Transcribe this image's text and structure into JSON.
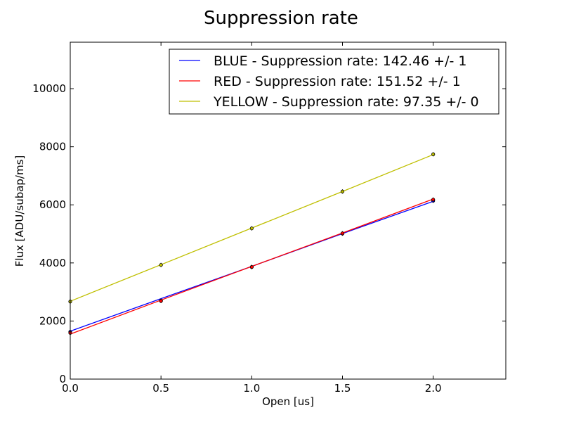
{
  "chart_data": {
    "type": "line",
    "title": "Suppression rate",
    "xlabel": "Open [us]",
    "ylabel": "Flux [ADU/subap/ms]",
    "xlim": [
      0.0,
      2.4
    ],
    "ylim": [
      0,
      11600
    ],
    "xticks": [
      0.0,
      0.5,
      1.0,
      1.5,
      2.0
    ],
    "xtick_labels": [
      "0.0",
      "0.5",
      "1.0",
      "1.5",
      "2.0"
    ],
    "yticks": [
      0,
      2000,
      4000,
      6000,
      8000,
      10000
    ],
    "ytick_labels": [
      "0",
      "2000",
      "4000",
      "6000",
      "8000",
      "10000"
    ],
    "grid": false,
    "legend_position": "top-right",
    "series": [
      {
        "name": "BLUE - Suppression rate: 142.46 +/- 1",
        "color": "#0000ff",
        "x": [
          0.0,
          0.5,
          1.0,
          1.5,
          2.0
        ],
        "points": [
          1630,
          2700,
          3860,
          5010,
          6140
        ],
        "fit": [
          1650,
          2770,
          3880,
          5010,
          6120
        ]
      },
      {
        "name": "RED - Suppression rate: 151.52 +/- 1",
        "color": "#ff0000",
        "x": [
          0.0,
          0.5,
          1.0,
          1.5,
          2.0
        ],
        "points": [
          1590,
          2690,
          3860,
          5020,
          6180
        ],
        "fit": [
          1550,
          2720,
          3880,
          5030,
          6200
        ]
      },
      {
        "name": "YELLOW - Suppression rate: 97.35 +/- 0",
        "color": "#bfbf00",
        "x": [
          0.0,
          0.5,
          1.0,
          1.5,
          2.0
        ],
        "points": [
          2670,
          3930,
          5190,
          6460,
          7740
        ],
        "fit": [
          2680,
          3940,
          5200,
          6460,
          7730
        ]
      }
    ]
  }
}
